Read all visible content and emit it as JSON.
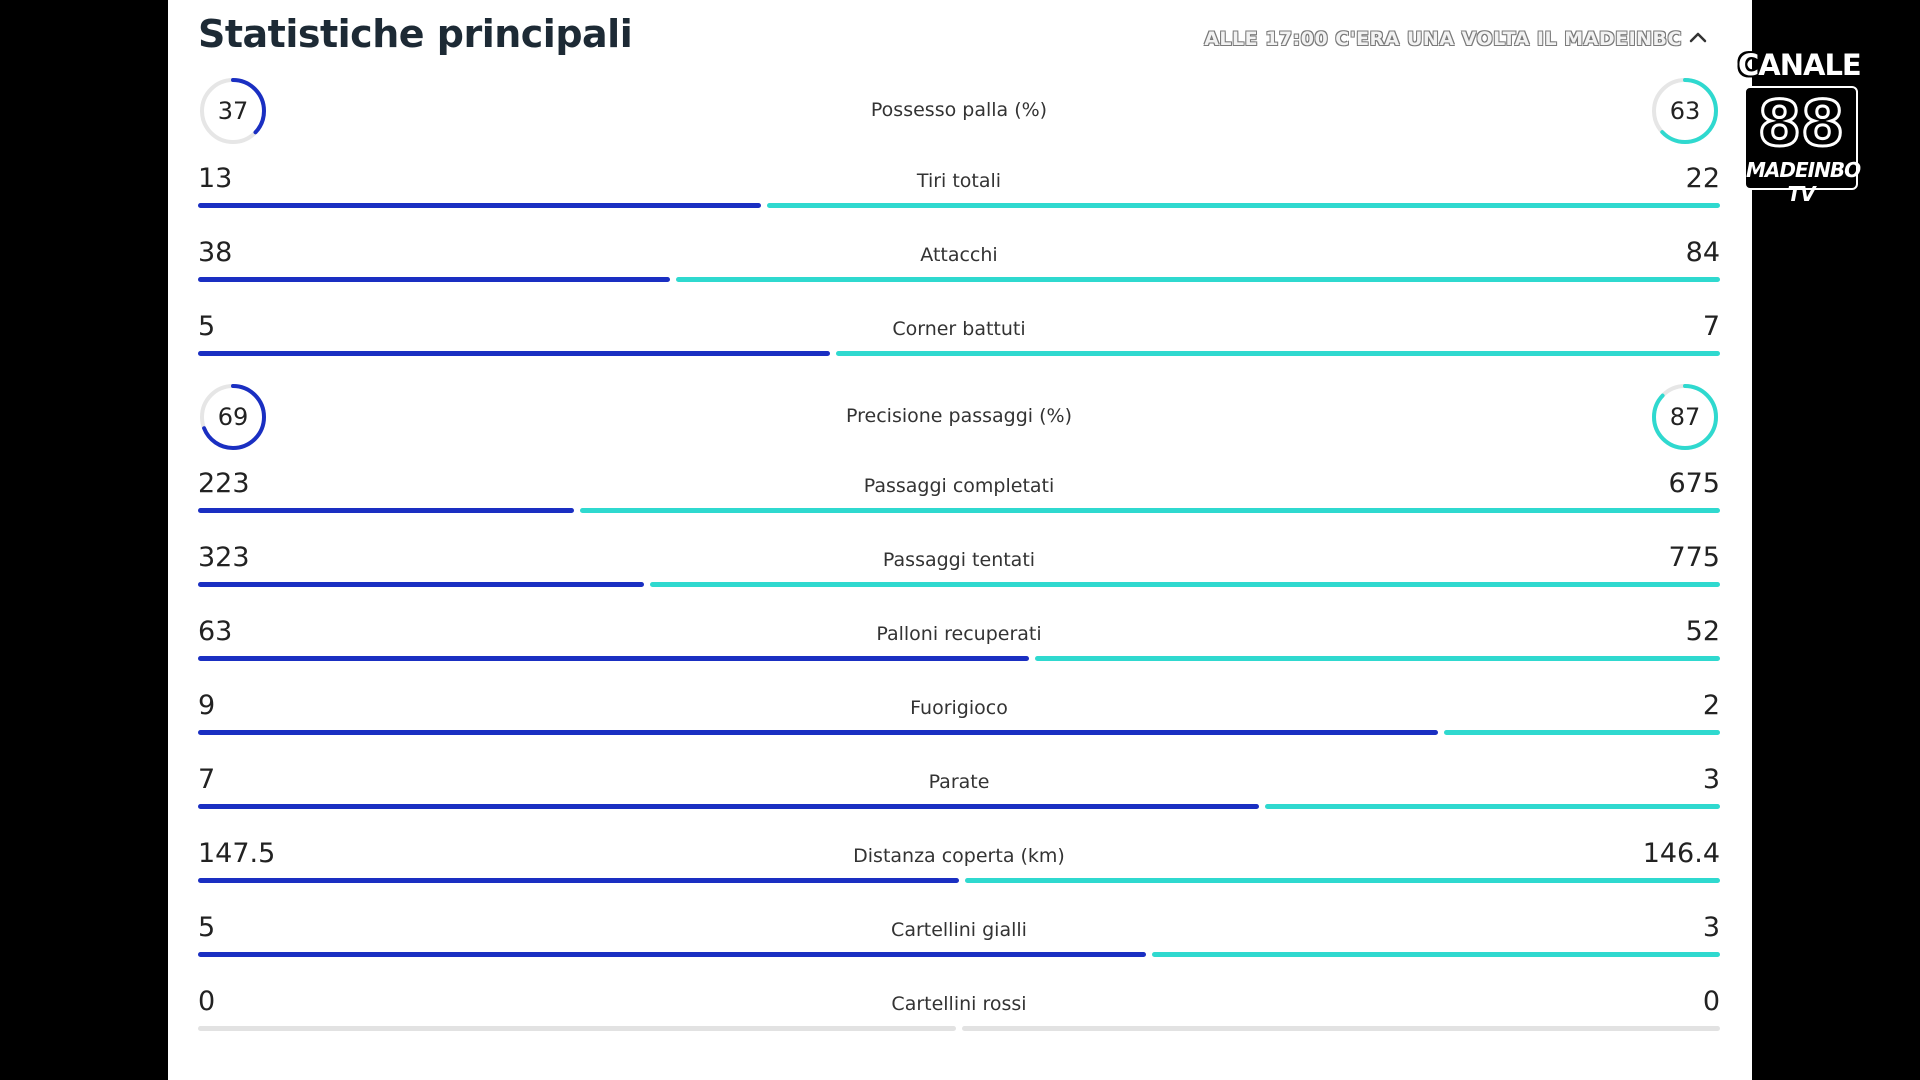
{
  "header": {
    "title": "Statistiche principali",
    "ticker": "ALLE 17:00 C'ERA UNA VOLTA IL MADEINBC"
  },
  "logo": {
    "top": "CANALE",
    "number": "88",
    "sub": "MADEINBO TV"
  },
  "colors": {
    "home": "#1a2fc2",
    "away": "#2fd9cf",
    "neutral": "#e2e2e2"
  },
  "possession": {
    "label": "Possesso palla (%)",
    "home": "37",
    "away": "63",
    "home_pct": 37,
    "away_pct": 63
  },
  "passing_accuracy": {
    "label": "Precisione passaggi (%)",
    "home": "69",
    "away": "87",
    "home_pct": 69,
    "away_pct": 87
  },
  "stats": [
    {
      "label": "Tiri totali",
      "home": "13",
      "away": "22",
      "home_num": 13,
      "away_num": 22
    },
    {
      "label": "Attacchi",
      "home": "38",
      "away": "84",
      "home_num": 38,
      "away_num": 84
    },
    {
      "label": "Corner battuti",
      "home": "5",
      "away": "7",
      "home_num": 5,
      "away_num": 7
    },
    {
      "label": "Passaggi completati",
      "home": "223",
      "away": "675",
      "home_num": 223,
      "away_num": 675
    },
    {
      "label": "Passaggi tentati",
      "home": "323",
      "away": "775",
      "home_num": 323,
      "away_num": 775
    },
    {
      "label": "Palloni recuperati",
      "home": "63",
      "away": "52",
      "home_num": 63,
      "away_num": 52
    },
    {
      "label": "Fuorigioco",
      "home": "9",
      "away": "2",
      "home_num": 9,
      "away_num": 2
    },
    {
      "label": "Parate",
      "home": "7",
      "away": "3",
      "home_num": 7,
      "away_num": 3
    },
    {
      "label": "Distanza coperta (km)",
      "home": "147.5",
      "away": "146.4",
      "home_num": 147.5,
      "away_num": 146.4
    },
    {
      "label": "Cartellini gialli",
      "home": "5",
      "away": "3",
      "home_num": 5,
      "away_num": 3
    },
    {
      "label": "Cartellini rossi",
      "home": "0",
      "away": "0",
      "home_num": 0,
      "away_num": 0
    }
  ]
}
